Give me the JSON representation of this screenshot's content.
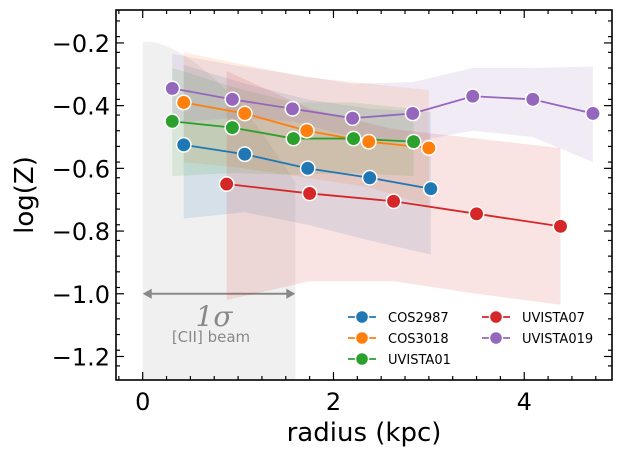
{
  "chart_data": {
    "type": "line",
    "title": "",
    "xlabel": "radius (kpc)",
    "ylabel": "log(Z)",
    "xlim": [
      -0.28,
      4.92
    ],
    "ylim": [
      -1.275,
      -0.095
    ],
    "xticks": [
      0,
      2,
      4
    ],
    "xtick_labels": [
      "0",
      "2",
      "4"
    ],
    "yticks": [
      -1.2,
      -1.0,
      -0.8,
      -0.6,
      -0.4,
      -0.2
    ],
    "ytick_labels": [
      "−1.2",
      "−1.0",
      "−0.8",
      "−0.6",
      "−0.4",
      "−0.2"
    ],
    "grid": false,
    "legend_position": "lower-right",
    "beam": {
      "x_range": [
        0,
        1.6
      ],
      "y_level": -1.0,
      "sigma_label": "1σ",
      "label": "[CII] beam",
      "color": "#888888"
    },
    "series": [
      {
        "name": "COS2987",
        "color": "#1f77b4",
        "x": [
          0.43,
          1.07,
          1.73,
          2.38,
          3.02
        ],
        "y": [
          -0.525,
          -0.555,
          -0.6,
          -0.63,
          -0.665
        ],
        "band_x": [
          0.43,
          1.07,
          1.73,
          2.38,
          3.02
        ],
        "band_lower": [
          -0.76,
          -0.74,
          -0.78,
          -0.83,
          -0.875
        ],
        "band_upper": [
          -0.27,
          -0.33,
          -0.38,
          -0.41,
          -0.42
        ]
      },
      {
        "name": "COS3018",
        "color": "#ff7f0e",
        "x": [
          0.43,
          1.07,
          1.72,
          2.37,
          3.0
        ],
        "y": [
          -0.39,
          -0.425,
          -0.48,
          -0.515,
          -0.535
        ],
        "band_x": [
          0.43,
          1.07,
          1.72,
          2.37,
          3.0
        ],
        "band_lower": [
          -0.58,
          -0.6,
          -0.63,
          -0.66,
          -0.72
        ],
        "band_upper": [
          -0.23,
          -0.27,
          -0.31,
          -0.33,
          -0.35
        ]
      },
      {
        "name": "UVISTA01",
        "color": "#2ca02c",
        "x": [
          0.31,
          0.94,
          1.58,
          2.21,
          2.84
        ],
        "y": [
          -0.45,
          -0.47,
          -0.505,
          -0.505,
          -0.515
        ],
        "band_x": [
          0.31,
          0.94,
          1.58,
          2.21,
          2.84
        ],
        "band_lower": [
          -0.625,
          -0.615,
          -0.62,
          -0.615,
          -0.625
        ],
        "band_upper": [
          -0.28,
          -0.34,
          -0.39,
          -0.39,
          -0.41
        ]
      },
      {
        "name": "UVISTA07",
        "color": "#d62728",
        "x": [
          0.88,
          1.75,
          2.63,
          3.5,
          4.38
        ],
        "y": [
          -0.65,
          -0.68,
          -0.705,
          -0.745,
          -0.785
        ],
        "band_x": [
          0.88,
          1.75,
          2.63,
          3.5,
          4.38
        ],
        "band_lower": [
          -1.02,
          -0.96,
          -0.96,
          -1.0,
          -1.035
        ],
        "band_upper": [
          -0.29,
          -0.41,
          -0.475,
          -0.505,
          -0.535
        ]
      },
      {
        "name": "UVISTA019",
        "color": "#9467bd",
        "x": [
          0.31,
          0.94,
          1.57,
          2.2,
          2.83,
          3.46,
          4.09,
          4.72
        ],
        "y": [
          -0.345,
          -0.38,
          -0.41,
          -0.44,
          -0.425,
          -0.37,
          -0.38,
          -0.425
        ],
        "band_x": [
          0.31,
          0.94,
          1.57,
          2.2,
          2.83,
          3.46,
          4.09,
          4.72
        ],
        "band_lower": [
          -0.455,
          -0.44,
          -0.45,
          -0.5,
          -0.515,
          -0.48,
          -0.5,
          -0.58
        ],
        "band_upper": [
          -0.235,
          -0.27,
          -0.3,
          -0.33,
          -0.325,
          -0.28,
          -0.28,
          -0.275
        ]
      }
    ]
  }
}
